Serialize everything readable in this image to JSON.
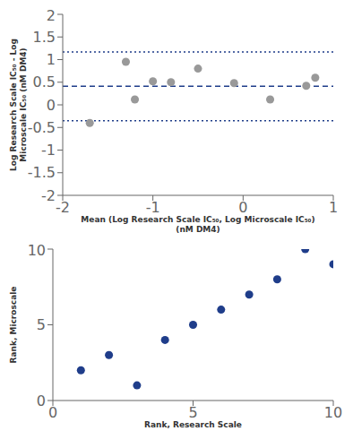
{
  "chart_data": [
    {
      "type": "scatter",
      "xlabel": "Mean (Log Research Scale IC₅₀, Log Microscale IC₅₀)\n(nM DM4)",
      "ylabel": "Log Research Scale IC₅₀ - Log\nMicroscale IC₅₀ (nM DM4)",
      "x": [
        -1.7,
        -1.3,
        -1.2,
        -1.0,
        -0.8,
        -0.5,
        -0.1,
        0.3,
        0.7,
        0.8
      ],
      "values": [
        -0.4,
        0.95,
        0.12,
        0.52,
        0.5,
        0.8,
        0.48,
        0.12,
        0.42,
        0.6
      ],
      "color": "#999999",
      "hlines": [
        {
          "value": 0.41,
          "line_style": "dashed",
          "color": "#1f3d8a"
        },
        {
          "value": 1.17,
          "line_style": "dotted",
          "color": "#1f3d8a"
        },
        {
          "value": -0.35,
          "line_style": "dotted",
          "color": "#1f3d8a"
        }
      ],
      "xlim": [
        -2,
        1
      ],
      "ylim": [
        -2,
        2
      ],
      "xticks": [
        -2,
        -1,
        0,
        1
      ],
      "yticks": [
        -2,
        -1.5,
        -1,
        -0.5,
        0,
        0.5,
        1,
        1.5,
        2
      ],
      "grid": false
    },
    {
      "type": "scatter",
      "xlabel": "Rank, Research Scale",
      "ylabel": "Rank, Microscale",
      "x": [
        1,
        2,
        3,
        4,
        5,
        6,
        7,
        8,
        9,
        10
      ],
      "values": [
        2,
        3,
        1,
        4,
        5,
        6,
        7,
        8,
        10,
        9
      ],
      "color": "#1f3d8a",
      "xlim": [
        0,
        10
      ],
      "ylim": [
        0,
        10
      ],
      "xticks": [
        0,
        5,
        10
      ],
      "yticks": [
        0,
        5,
        10
      ],
      "grid": false
    }
  ]
}
